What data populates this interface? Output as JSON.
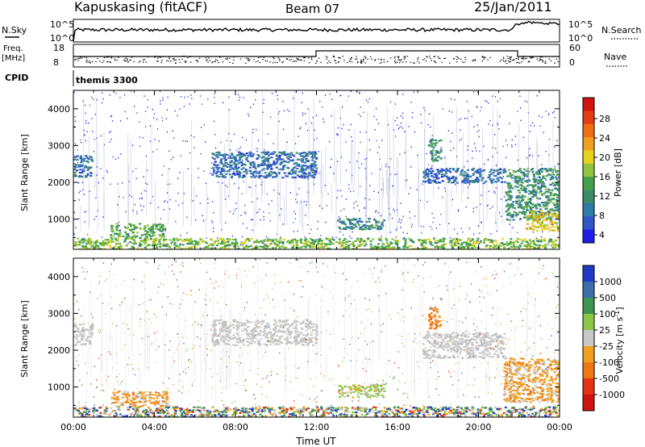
{
  "header": {
    "station": "Kapuskasing (fitACF)",
    "beam": "Beam 07",
    "date": "25/Jan/2011"
  },
  "params": {
    "nsky_label": "N.Sky",
    "nsky_ticks": [
      "10^5",
      "10^0"
    ],
    "nsearch_label": "N.Search",
    "nsearch_ticks": [
      "10^5",
      "10^0"
    ],
    "freq_label": "Freq.",
    "freq_unit": "[MHz]",
    "freq_ticks": [
      "18",
      "8"
    ],
    "nave_label": "Nave",
    "nave_ticks": [
      "60",
      "0"
    ],
    "cpid_label": "CPID",
    "cpid_value": "themis 3300"
  },
  "chart_data": [
    {
      "type": "heatmap",
      "name": "power-panel",
      "ylabel": "Slant Range [km]",
      "yticks": [
        "4000",
        "3000",
        "2000",
        "1000"
      ],
      "ylim": [
        180,
        4500
      ],
      "xticks": [
        "00:00",
        "04:00",
        "08:00",
        "12:00",
        "16:00",
        "20:00",
        "00:00"
      ],
      "xlim_hours": [
        0,
        24
      ],
      "colorbar": {
        "label": "Power [dB]",
        "ticks": [
          "28",
          "24",
          "20",
          "16",
          "12",
          "8",
          "4"
        ],
        "range": [
          0,
          30
        ],
        "colors": [
          "#1e1ee6",
          "#2f55c8",
          "#2e7aa8",
          "#3c8c6a",
          "#41a14a",
          "#8fc43c",
          "#e8d21e",
          "#f0a01e",
          "#f26e14",
          "#e63c14",
          "#d2140f"
        ]
      },
      "echo_regions": [
        {
          "t0": 0.0,
          "t1": 0.9,
          "r0": 2150,
          "r1": 2750,
          "power": 6
        },
        {
          "t0": 1.8,
          "t1": 4.5,
          "r0": 480,
          "r1": 900,
          "power": 12
        },
        {
          "t0": 6.8,
          "t1": 12.0,
          "r0": 2150,
          "r1": 2850,
          "power": 5
        },
        {
          "t0": 13.0,
          "t1": 15.3,
          "r0": 740,
          "r1": 1050,
          "power": 8
        },
        {
          "t0": 17.5,
          "t1": 18.1,
          "r0": 2600,
          "r1": 3200,
          "power": 9
        },
        {
          "t0": 17.2,
          "t1": 21.3,
          "r0": 2000,
          "r1": 2400,
          "power": 5
        },
        {
          "t0": 21.3,
          "t1": 24.0,
          "r0": 1000,
          "r1": 2400,
          "power": 10
        },
        {
          "t0": 22.3,
          "t1": 24.0,
          "r0": 700,
          "r1": 1250,
          "power": 18
        },
        {
          "t0": 0.0,
          "t1": 24.0,
          "r0": 180,
          "r1": 500,
          "power": 14
        }
      ]
    },
    {
      "type": "heatmap",
      "name": "velocity-panel",
      "ylabel": "Slant Range [km]",
      "yticks": [
        "4000",
        "3000",
        "2000",
        "1000"
      ],
      "ylim": [
        180,
        4500
      ],
      "xticks": [
        "00:00",
        "04:00",
        "08:00",
        "12:00",
        "16:00",
        "20:00",
        "00:00"
      ],
      "xlim_hours": [
        0,
        24
      ],
      "xlabel": "Time UT",
      "colorbar": {
        "label": "Velocity [m s^-1]",
        "ticks": [
          "1000",
          "500",
          "100",
          "25",
          "-25",
          "-100",
          "-500",
          "-1000"
        ],
        "colors": [
          "#1e3cc8",
          "#3c6eaa",
          "#3c9650",
          "#8cc846",
          "#c8c8c8",
          "#f0a01e",
          "#f07814",
          "#e63214",
          "#d2140f"
        ]
      },
      "echo_regions": [
        {
          "t0": 0.0,
          "t1": 0.9,
          "r0": 2150,
          "r1": 2750,
          "velocity": "-25 to 25"
        },
        {
          "t0": 1.8,
          "t1": 4.6,
          "r0": 480,
          "r1": 900,
          "velocity": "-100"
        },
        {
          "t0": 6.8,
          "t1": 12.0,
          "r0": 2150,
          "r1": 2850,
          "velocity": "-25 to 25"
        },
        {
          "t0": 13.0,
          "t1": 15.3,
          "r0": 740,
          "r1": 1100,
          "velocity": "100"
        },
        {
          "t0": 17.5,
          "t1": 18.1,
          "r0": 2600,
          "r1": 3200,
          "velocity": "-500"
        },
        {
          "t0": 17.2,
          "t1": 21.3,
          "r0": 1800,
          "r1": 2500,
          "velocity": "-25 to 25"
        },
        {
          "t0": 21.2,
          "t1": 24.0,
          "r0": 600,
          "r1": 1800,
          "velocity": "-100"
        },
        {
          "t0": 0.0,
          "t1": 24.0,
          "r0": 180,
          "r1": 480,
          "velocity": "mixed"
        }
      ]
    }
  ]
}
